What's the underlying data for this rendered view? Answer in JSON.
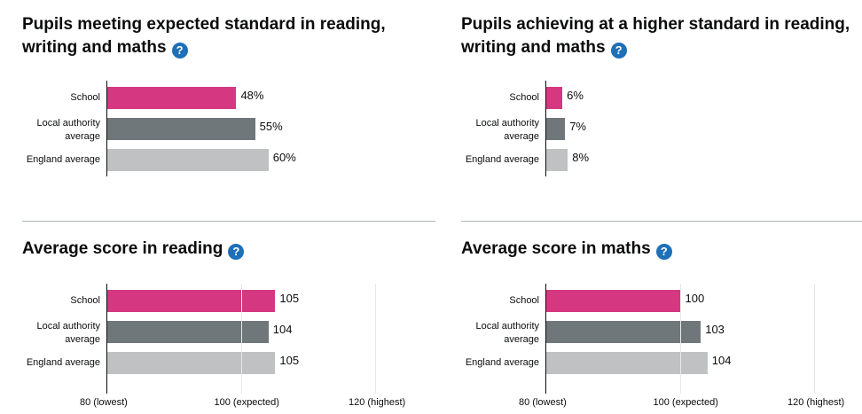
{
  "colors": {
    "school": "#d53880",
    "local_authority": "#6f777b",
    "england": "#bfc1c3",
    "help_icon": "#1d70b8"
  },
  "help_icon": "question-mark-circle-icon",
  "panels": [
    {
      "title": "Pupils meeting expected standard in reading, writing and maths",
      "help": "?",
      "chart_data": {
        "type": "bar",
        "orientation": "horizontal",
        "categories": [
          "School",
          "Local authority average",
          "England average"
        ],
        "values": [
          48,
          55,
          60
        ],
        "value_labels": [
          "48%",
          "55%",
          "60%"
        ],
        "unit": "%",
        "xlim": [
          0,
          100
        ],
        "ticks": []
      }
    },
    {
      "title": "Pupils achieving at a higher standard in reading, writing and maths",
      "help": "?",
      "chart_data": {
        "type": "bar",
        "orientation": "horizontal",
        "categories": [
          "School",
          "Local authority average",
          "England average"
        ],
        "values": [
          6,
          7,
          8
        ],
        "value_labels": [
          "6%",
          "7%",
          "8%"
        ],
        "unit": "%",
        "xlim": [
          0,
          100
        ],
        "ticks": []
      }
    },
    {
      "title": "Average score in reading",
      "help": "?",
      "chart_data": {
        "type": "bar",
        "orientation": "horizontal",
        "categories": [
          "School",
          "Local authority average",
          "England average"
        ],
        "values": [
          105,
          104,
          105
        ],
        "value_labels": [
          "105",
          "104",
          "105"
        ],
        "xlim": [
          80,
          120
        ],
        "ticks": [
          "80 (lowest)",
          "100 (expected)",
          "120 (highest)"
        ]
      }
    },
    {
      "title": "Average score in maths",
      "help": "?",
      "chart_data": {
        "type": "bar",
        "orientation": "horizontal",
        "categories": [
          "School",
          "Local authority average",
          "England average"
        ],
        "values": [
          100,
          103,
          104
        ],
        "value_labels": [
          "100",
          "103",
          "104"
        ],
        "xlim": [
          80,
          120
        ],
        "ticks": [
          "80 (lowest)",
          "100 (expected)",
          "120 (highest)"
        ]
      }
    }
  ]
}
